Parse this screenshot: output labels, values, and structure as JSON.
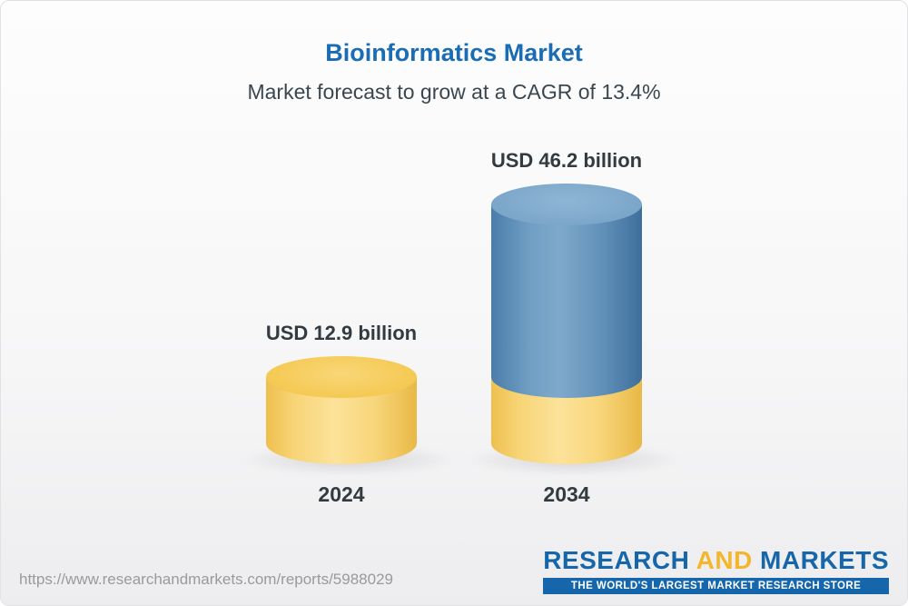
{
  "header": {
    "title": "Bioinformatics Market",
    "subtitle": "Market forecast to grow at a CAGR of 13.4%"
  },
  "chart_data": {
    "type": "bar",
    "bar_style": "3d-cylinder",
    "title": "Bioinformatics Market",
    "subtitle": "Market forecast to grow at a CAGR of 13.4%",
    "cagr": "13.4%",
    "categories": [
      "2024",
      "2034"
    ],
    "values": [
      12.9,
      46.2
    ],
    "unit": "USD billion",
    "value_labels": [
      "USD 12.9 billion",
      "USD 46.2 billion"
    ],
    "legend": false,
    "ylim": [
      0,
      50
    ],
    "colors": {
      "base_segment": "#f5cb5c",
      "growth_segment": "#5f8fb8"
    }
  },
  "footer": {
    "url": "https://www.researchandmarkets.com/reports/5988029",
    "logo": {
      "word1": "RESEARCH",
      "word2": "AND",
      "word3": "MARKETS",
      "tagline": "THE WORLD'S LARGEST MARKET RESEARCH STORE"
    }
  },
  "colors": {
    "title_blue": "#1a6cb5",
    "subtitle_gray": "#3a4750",
    "label_dark": "#333a40",
    "logo_blue": "#1566aa",
    "logo_gold": "#f3b62c"
  }
}
